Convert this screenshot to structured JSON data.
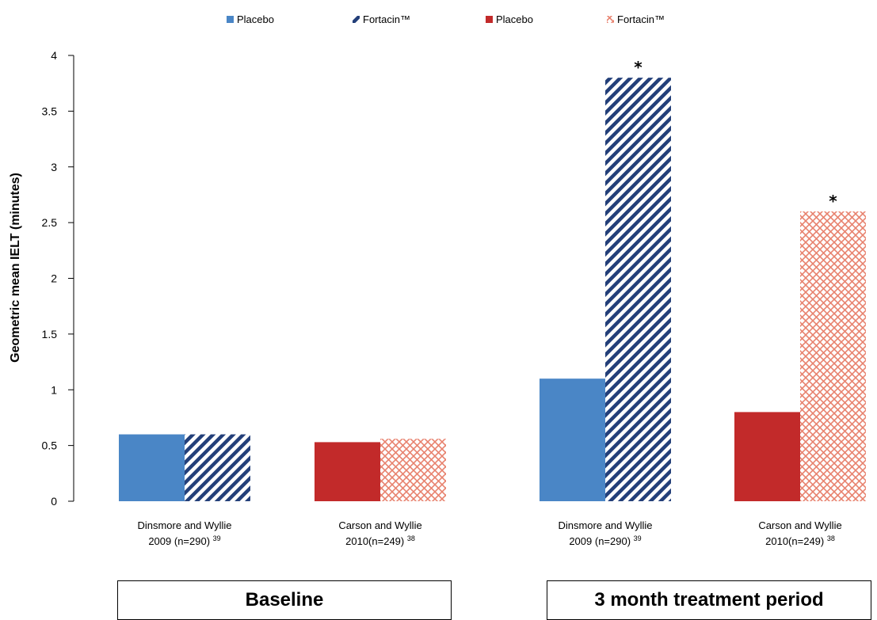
{
  "chart_data": {
    "type": "bar",
    "title": "",
    "xlabel": "",
    "ylabel": "Geometric mean IELT (minutes)",
    "ylim": [
      0,
      4
    ],
    "yticks": [
      "0",
      "0.5",
      "1",
      "1.5",
      "2",
      "2.5",
      "3",
      "3.5",
      "4"
    ],
    "grid": false,
    "legend_position": "top",
    "legend": [
      {
        "label": "Placebo",
        "color": "#4a86c6",
        "pattern": "solid"
      },
      {
        "label": "Fortacin™",
        "color": "#233f79",
        "pattern": "diagonal-hatch"
      },
      {
        "label": "Placebo",
        "color": "#c22a2a",
        "pattern": "solid"
      },
      {
        "label": "Fortacin™",
        "color": "#e8826e",
        "pattern": "cross-hatch"
      }
    ],
    "groups": [
      {
        "label": "Baseline",
        "studies": [
          {
            "label_line1": "Dinsmore and Wyllie",
            "label_line2": "2009 (n=290)",
            "ref": "39",
            "placebo": 0.6,
            "fortacin": 0.6,
            "color": "blue",
            "significant": false
          },
          {
            "label_line1": "Carson and Wyllie",
            "label_line2": "2010(n=249)",
            "ref": "38",
            "placebo": 0.53,
            "fortacin": 0.56,
            "color": "red",
            "significant": false
          }
        ]
      },
      {
        "label": "3 month treatment period",
        "studies": [
          {
            "label_line1": "Dinsmore and Wyllie",
            "label_line2": "2009 (n=290)",
            "ref": "39",
            "placebo": 1.1,
            "fortacin": 3.8,
            "color": "blue",
            "significant": true
          },
          {
            "label_line1": "Carson and Wyllie",
            "label_line2": "2010(n=249)",
            "ref": "38",
            "placebo": 0.8,
            "fortacin": 2.6,
            "color": "red",
            "significant": true
          }
        ]
      }
    ],
    "significance_marker": "*"
  }
}
